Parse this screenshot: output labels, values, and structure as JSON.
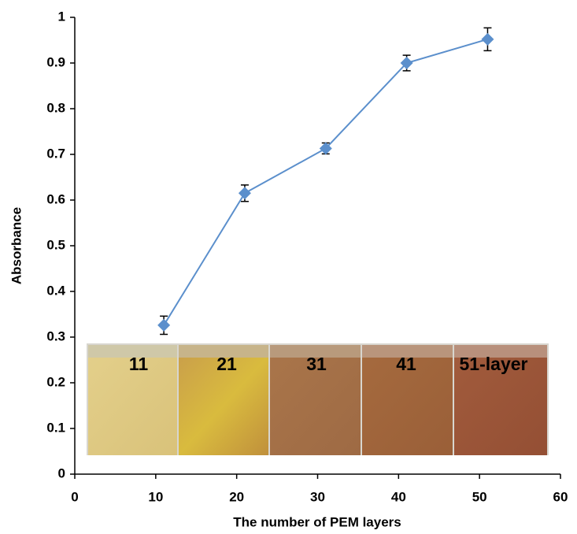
{
  "chart_data": {
    "type": "line",
    "x_label": "The number of PEM layers",
    "y_label": "Absorbance",
    "x": [
      11,
      21,
      31,
      41,
      51
    ],
    "series": [
      {
        "name": "Absorbance",
        "color": "#5b8fcc",
        "values": [
          0.326,
          0.615,
          0.713,
          0.9,
          0.952
        ],
        "errors": [
          0.02,
          0.018,
          0.012,
          0.017,
          0.025
        ]
      }
    ],
    "xlim": [
      0,
      60
    ],
    "xticks": [
      0,
      10,
      20,
      30,
      40,
      50,
      60
    ],
    "ylim": [
      0,
      1
    ],
    "yticks": [
      0,
      0.1,
      0.2,
      0.3,
      0.4,
      0.5,
      0.6,
      0.7,
      0.8,
      0.9,
      1
    ],
    "grid": false,
    "inset_labels": [
      "11",
      "21",
      "31",
      "41",
      "51-layer"
    ]
  }
}
